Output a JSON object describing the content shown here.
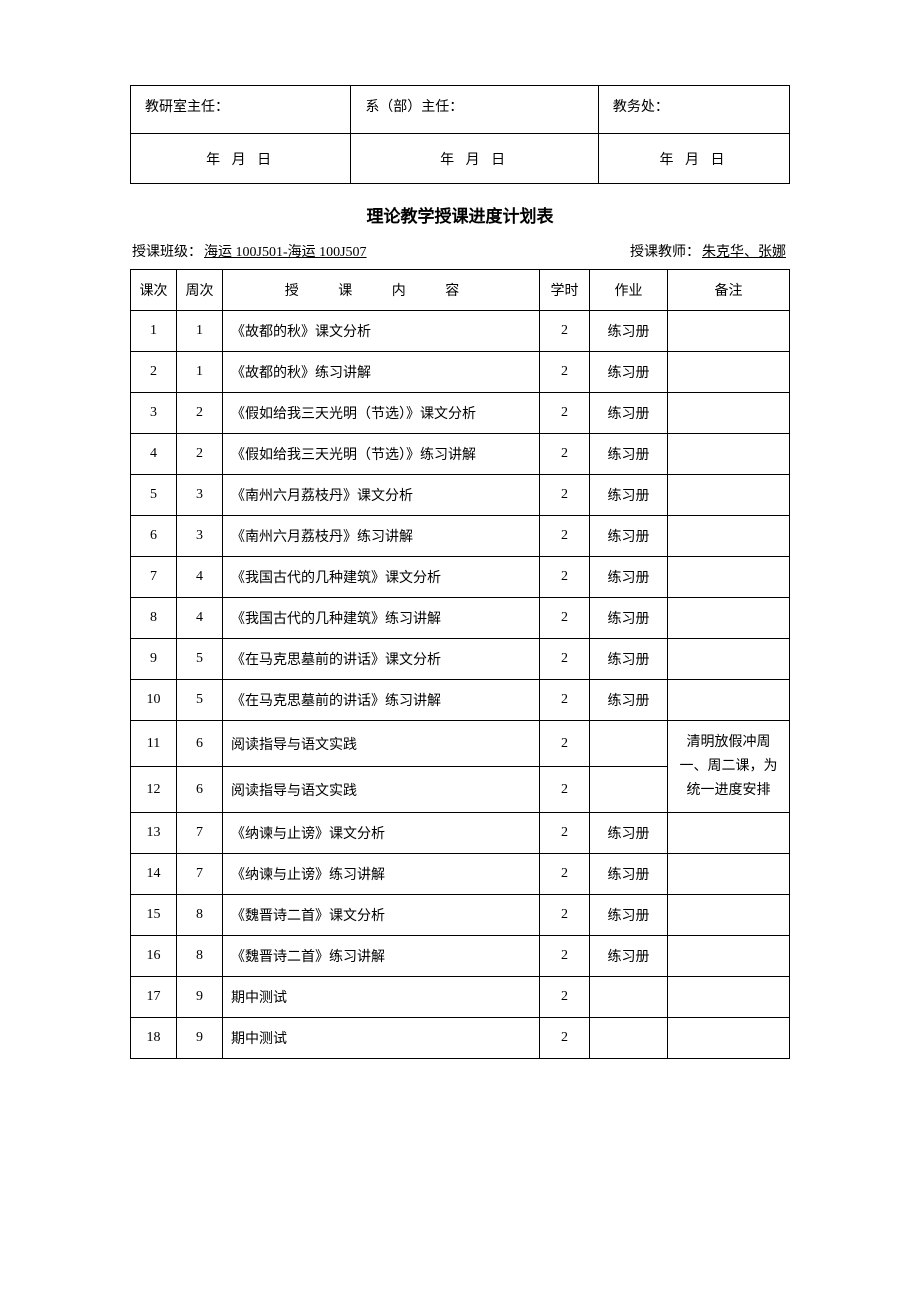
{
  "signature": {
    "office_director": "教研室主任：",
    "dept_director": "系（部）主任：",
    "academic_office": "教务处：",
    "date_text": "年  月  日"
  },
  "title": "理论教学授课进度计划表",
  "meta": {
    "class_label": "授课班级：",
    "class_value": "海运 100J501-海运 100J507",
    "teacher_label": "授课教师：",
    "teacher_value": "朱克华、张娜 "
  },
  "headers": {
    "num": "课次",
    "week": "周次",
    "content": "授  课  内  容",
    "hours": "学时",
    "homework": "作业",
    "note": "备注"
  },
  "note_merged": "清明放假冲周一、周二课，为统一进度安排",
  "rows": [
    {
      "num": "1",
      "week": "1",
      "content": "《故都的秋》课文分析",
      "hours": "2",
      "hw": "练习册",
      "note": ""
    },
    {
      "num": "2",
      "week": "1",
      "content": "《故都的秋》练习讲解",
      "hours": "2",
      "hw": "练习册",
      "note": ""
    },
    {
      "num": "3",
      "week": "2",
      "content": "《假如给我三天光明（节选）》课文分析",
      "hours": "2",
      "hw": "练习册",
      "note": ""
    },
    {
      "num": "4",
      "week": "2",
      "content": "《假如给我三天光明（节选）》练习讲解",
      "hours": "2",
      "hw": "练习册",
      "note": ""
    },
    {
      "num": "5",
      "week": "3",
      "content": "《南州六月荔枝丹》课文分析",
      "hours": "2",
      "hw": "练习册",
      "note": ""
    },
    {
      "num": "6",
      "week": "3",
      "content": "《南州六月荔枝丹》练习讲解",
      "hours": "2",
      "hw": "练习册",
      "note": ""
    },
    {
      "num": "7",
      "week": "4",
      "content": "《我国古代的几种建筑》课文分析",
      "hours": "2",
      "hw": "练习册",
      "note": ""
    },
    {
      "num": "8",
      "week": "4",
      "content": "《我国古代的几种建筑》练习讲解",
      "hours": "2",
      "hw": "练习册",
      "note": ""
    },
    {
      "num": "9",
      "week": "5",
      "content": "《在马克思墓前的讲话》课文分析",
      "hours": "2",
      "hw": "练习册",
      "note": ""
    },
    {
      "num": "10",
      "week": "5",
      "content": "《在马克思墓前的讲话》练习讲解",
      "hours": "2",
      "hw": "练习册",
      "note": ""
    },
    {
      "num": "11",
      "week": "6",
      "content": "阅读指导与语文实践",
      "hours": "2",
      "hw": "",
      "note": "merged"
    },
    {
      "num": "12",
      "week": "6",
      "content": "阅读指导与语文实践",
      "hours": "2",
      "hw": "",
      "note": "skip"
    },
    {
      "num": "13",
      "week": "7",
      "content": "《纳谏与止谤》课文分析",
      "hours": "2",
      "hw": "练习册",
      "note": ""
    },
    {
      "num": "14",
      "week": "7",
      "content": "《纳谏与止谤》练习讲解",
      "hours": "2",
      "hw": "练习册",
      "note": ""
    },
    {
      "num": "15",
      "week": "8",
      "content": "《魏晋诗二首》课文分析",
      "hours": "2",
      "hw": "练习册",
      "note": ""
    },
    {
      "num": "16",
      "week": "8",
      "content": "《魏晋诗二首》练习讲解",
      "hours": "2",
      "hw": "练习册",
      "note": ""
    },
    {
      "num": "17",
      "week": "9",
      "content": "期中测试",
      "hours": "2",
      "hw": "",
      "note": ""
    },
    {
      "num": "18",
      "week": "9",
      "content": "期中测试",
      "hours": "2",
      "hw": "",
      "note": ""
    }
  ]
}
